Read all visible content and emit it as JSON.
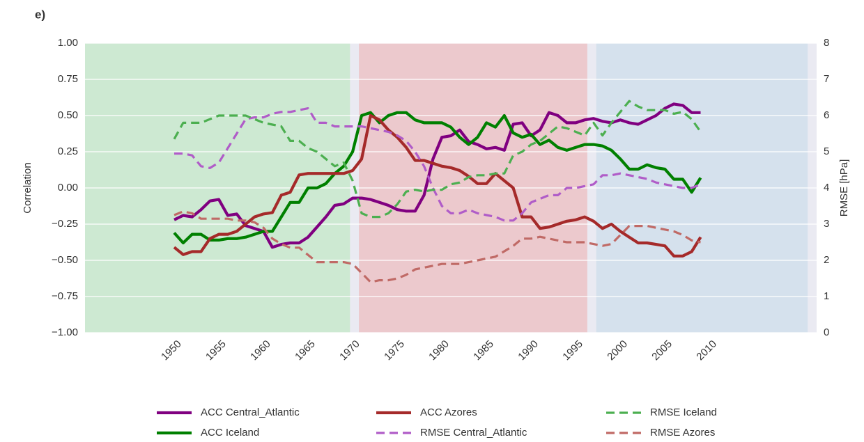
{
  "chart_data": {
    "type": "line",
    "panel_label": "e)",
    "ylabel": "Correlation",
    "y2label": "RMSE [hPa]",
    "xlim": [
      1940,
      2022
    ],
    "xticks": [
      1950,
      1955,
      1960,
      1965,
      1970,
      1975,
      1980,
      1985,
      1990,
      1995,
      2000,
      2005,
      2010
    ],
    "ylim": [
      -1,
      1
    ],
    "yticks": [
      {
        "value": -1,
        "label": "−1.00"
      },
      {
        "value": -0.75,
        "label": "−0.75"
      },
      {
        "value": -0.5,
        "label": "−0.50"
      },
      {
        "value": -0.25,
        "label": "−0.25"
      },
      {
        "value": 0,
        "label": "0.00"
      },
      {
        "value": 0.25,
        "label": "0.25"
      },
      {
        "value": 0.5,
        "label": "0.50"
      },
      {
        "value": 0.75,
        "label": "0.75"
      },
      {
        "value": 1,
        "label": "1.00"
      }
    ],
    "y2lim": [
      0,
      8
    ],
    "y2ticks": [
      0,
      1,
      2,
      3,
      4,
      5,
      6,
      7,
      8
    ],
    "grid": true,
    "legend": "lower center",
    "spans": [
      {
        "start": 1940,
        "end": 1969.7,
        "color": "#cde9d2"
      },
      {
        "start": 1970.7,
        "end": 1996.3,
        "color": "#ecc9cd"
      },
      {
        "start": 1997.3,
        "end": 2021,
        "color": "#d5e1ed"
      }
    ],
    "x": [
      1950,
      1951,
      1952,
      1953,
      1954,
      1955,
      1956,
      1957,
      1958,
      1959,
      1960,
      1961,
      1962,
      1963,
      1964,
      1965,
      1966,
      1967,
      1968,
      1969,
      1970,
      1971,
      1972,
      1973,
      1974,
      1975,
      1976,
      1977,
      1978,
      1979,
      1980,
      1981,
      1982,
      1983,
      1984,
      1985,
      1986,
      1987,
      1988,
      1989,
      1990,
      1991,
      1992,
      1993,
      1994,
      1995,
      1996,
      1997,
      1998,
      1999,
      2000,
      2001,
      2002,
      2003,
      2004,
      2005,
      2006,
      2007,
      2008,
      2009
    ],
    "series": [
      {
        "name": "ACC Central_Atlantic",
        "color": "#800080",
        "dashed": false,
        "values": [
          -0.22,
          -0.19,
          -0.2,
          -0.15,
          -0.09,
          -0.08,
          -0.19,
          -0.18,
          -0.26,
          -0.28,
          -0.3,
          -0.41,
          -0.39,
          -0.38,
          -0.38,
          -0.34,
          -0.27,
          -0.2,
          -0.12,
          -0.11,
          -0.07,
          -0.07,
          -0.08,
          -0.1,
          -0.12,
          -0.15,
          -0.16,
          -0.16,
          -0.05,
          0.2,
          0.35,
          0.36,
          0.4,
          0.32,
          0.3,
          0.27,
          0.28,
          0.26,
          0.44,
          0.45,
          0.36,
          0.4,
          0.52,
          0.5,
          0.45,
          0.45,
          0.47,
          0.48,
          0.46,
          0.45,
          0.47,
          0.45,
          0.44,
          0.47,
          0.5,
          0.55,
          0.58,
          0.57,
          0.52,
          0.52
        ]
      },
      {
        "name": "ACC Iceland",
        "color": "#008000",
        "dashed": false,
        "values": [
          -0.31,
          -0.38,
          -0.32,
          -0.32,
          -0.36,
          -0.36,
          -0.35,
          -0.35,
          -0.34,
          -0.32,
          -0.3,
          -0.3,
          -0.2,
          -0.1,
          -0.1,
          0.0,
          0.0,
          0.03,
          0.1,
          0.15,
          0.25,
          0.5,
          0.52,
          0.45,
          0.5,
          0.52,
          0.52,
          0.47,
          0.45,
          0.45,
          0.45,
          0.42,
          0.35,
          0.3,
          0.35,
          0.45,
          0.42,
          0.5,
          0.38,
          0.35,
          0.37,
          0.3,
          0.33,
          0.28,
          0.26,
          0.28,
          0.3,
          0.3,
          0.29,
          0.26,
          0.2,
          0.13,
          0.13,
          0.16,
          0.14,
          0.13,
          0.06,
          0.06,
          -0.03,
          0.07
        ]
      },
      {
        "name": "ACC Azores",
        "color": "#a52a2a",
        "dashed": false,
        "values": [
          -0.41,
          -0.46,
          -0.44,
          -0.44,
          -0.35,
          -0.32,
          -0.32,
          -0.3,
          -0.25,
          -0.2,
          -0.18,
          -0.17,
          -0.05,
          -0.03,
          0.09,
          0.1,
          0.1,
          0.1,
          0.1,
          0.1,
          0.12,
          0.2,
          0.5,
          0.47,
          0.4,
          0.35,
          0.28,
          0.19,
          0.19,
          0.17,
          0.15,
          0.14,
          0.12,
          0.08,
          0.03,
          0.03,
          0.1,
          0.05,
          0.0,
          -0.2,
          -0.2,
          -0.28,
          -0.27,
          -0.25,
          -0.23,
          -0.22,
          -0.2,
          -0.23,
          -0.28,
          -0.25,
          -0.3,
          -0.34,
          -0.38,
          -0.38,
          -0.39,
          -0.4,
          -0.47,
          -0.47,
          -0.44,
          -0.34
        ]
      },
      {
        "name": "RMSE Central_Atlantic",
        "color": "#b05cc8",
        "dashed": true,
        "axis": "y2",
        "values": [
          4.95,
          4.95,
          4.9,
          4.6,
          4.55,
          4.7,
          5.1,
          5.5,
          5.9,
          5.95,
          5.95,
          6.05,
          6.1,
          6.1,
          6.15,
          6.2,
          5.8,
          5.8,
          5.7,
          5.7,
          5.7,
          5.7,
          5.65,
          5.6,
          5.55,
          5.45,
          5.3,
          5.0,
          4.6,
          4.0,
          3.5,
          3.3,
          3.3,
          3.4,
          3.3,
          3.25,
          3.2,
          3.1,
          3.1,
          3.3,
          3.6,
          3.7,
          3.8,
          3.8,
          4.0,
          4.0,
          4.05,
          4.1,
          4.35,
          4.35,
          4.4,
          4.35,
          4.3,
          4.25,
          4.15,
          4.1,
          4.05,
          4.0,
          4.0,
          4.1
        ]
      },
      {
        "name": "RMSE Iceland",
        "color": "#4caf50",
        "dashed": true,
        "axis": "y2",
        "values": [
          5.35,
          5.8,
          5.8,
          5.8,
          5.9,
          6.0,
          6.0,
          6.0,
          6.0,
          5.9,
          5.8,
          5.75,
          5.7,
          5.3,
          5.3,
          5.1,
          5.0,
          4.8,
          4.6,
          4.7,
          4.2,
          3.3,
          3.2,
          3.2,
          3.3,
          3.55,
          3.9,
          3.95,
          3.9,
          3.95,
          3.95,
          4.1,
          4.15,
          4.3,
          4.35,
          4.35,
          4.4,
          4.4,
          4.9,
          5.0,
          5.2,
          5.3,
          5.5,
          5.7,
          5.65,
          5.55,
          5.45,
          5.8,
          5.45,
          5.8,
          6.1,
          6.4,
          6.25,
          6.15,
          6.15,
          6.15,
          6.05,
          6.1,
          5.9,
          5.55
        ]
      },
      {
        "name": "RMSE Azores",
        "color": "#c06a66",
        "dashed": true,
        "axis": "y2",
        "values": [
          3.25,
          3.35,
          3.3,
          3.15,
          3.15,
          3.15,
          3.15,
          3.1,
          3.1,
          3.05,
          2.9,
          2.6,
          2.45,
          2.35,
          2.35,
          2.15,
          1.95,
          1.95,
          1.95,
          1.95,
          1.9,
          1.65,
          1.4,
          1.45,
          1.45,
          1.5,
          1.6,
          1.75,
          1.8,
          1.85,
          1.9,
          1.9,
          1.9,
          1.95,
          2.0,
          2.05,
          2.1,
          2.25,
          2.4,
          2.6,
          2.6,
          2.65,
          2.6,
          2.55,
          2.5,
          2.5,
          2.5,
          2.45,
          2.4,
          2.45,
          2.7,
          2.95,
          2.95,
          2.95,
          2.9,
          2.85,
          2.8,
          2.7,
          2.55,
          2.5
        ]
      }
    ]
  }
}
